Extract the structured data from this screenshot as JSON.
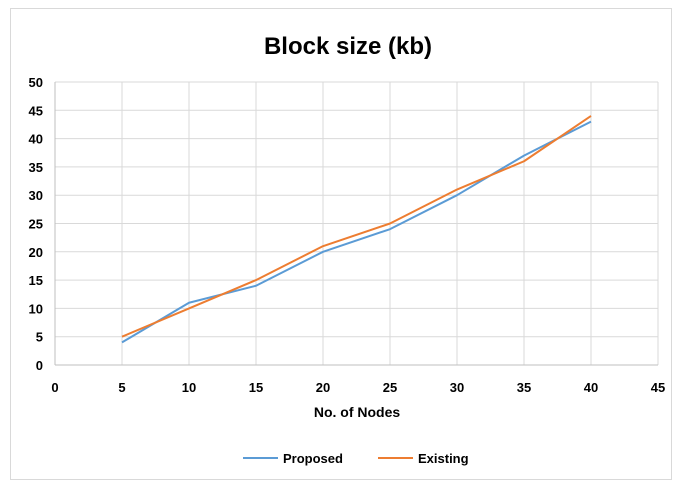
{
  "chart_data": {
    "type": "line",
    "title": "Block size (kb)",
    "xlabel": "No. of Nodes",
    "ylabel": "",
    "xlim": [
      0,
      45
    ],
    "ylim": [
      0,
      50
    ],
    "xticks": [
      0,
      5,
      10,
      15,
      20,
      25,
      30,
      35,
      40,
      45
    ],
    "yticks": [
      0,
      5,
      10,
      15,
      20,
      25,
      30,
      35,
      40,
      45,
      50
    ],
    "grid": true,
    "legend_position": "bottom",
    "series": [
      {
        "name": "Proposed",
        "color": "#5B9BD5",
        "x": [
          5,
          10,
          15,
          20,
          25,
          30,
          35,
          40
        ],
        "y": [
          4,
          11,
          14,
          20,
          24,
          30,
          37,
          43
        ]
      },
      {
        "name": "Existing",
        "color": "#ED7D31",
        "x": [
          5,
          10,
          15,
          20,
          25,
          30,
          35,
          40
        ],
        "y": [
          5,
          10,
          15,
          21,
          25,
          31,
          36,
          44
        ]
      }
    ]
  }
}
